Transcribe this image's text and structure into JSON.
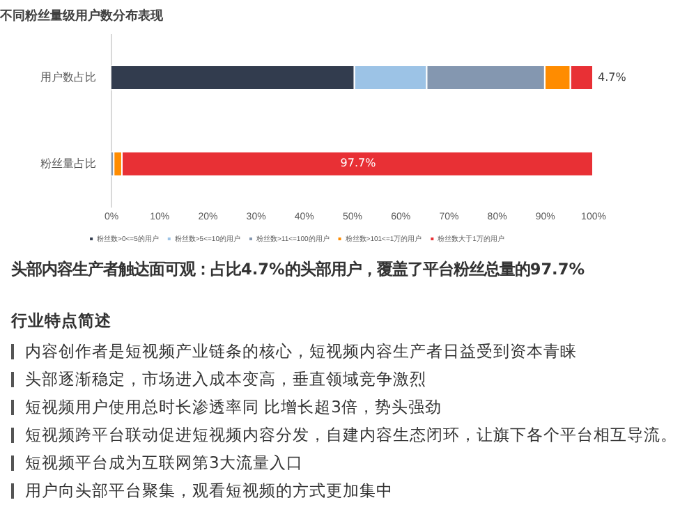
{
  "chart_data": {
    "type": "bar",
    "orientation": "horizontal",
    "stacked": true,
    "title": "不同粉丝量级用户数分布表现",
    "categories": [
      "用户数占比",
      "粉丝量占比"
    ],
    "series": [
      {
        "name": "粉丝数>0<=5的用户",
        "color": "#323c4e",
        "values": [
          50.5,
          null
        ]
      },
      {
        "name": "粉丝数>5<=10的用户",
        "color": "#9cc3e6",
        "values": [
          15.0,
          null
        ]
      },
      {
        "name": "粉丝数>11<=100的用户",
        "color": "#8497b0",
        "values": [
          24.5,
          0.6
        ]
      },
      {
        "name": "粉丝数>101<=1万的用户",
        "color": "#ff8c00",
        "values": [
          5.3,
          1.7
        ]
      },
      {
        "name": "粉丝数大于1万的用户",
        "color": "#e83035",
        "values": [
          4.7,
          97.7
        ],
        "value_labels": [
          "4.7%",
          "97.7%"
        ]
      }
    ],
    "xlim": [
      0,
      100
    ],
    "xticks": [
      {
        "value": 0,
        "label": "0%"
      },
      {
        "value": 10,
        "label": "10%"
      },
      {
        "value": 20,
        "label": "20%"
      },
      {
        "value": 30,
        "label": "30%"
      },
      {
        "value": 40,
        "label": "40%"
      },
      {
        "value": 50,
        "label": "50%"
      },
      {
        "value": 60,
        "label": "60%"
      },
      {
        "value": 70,
        "label": "70%"
      },
      {
        "value": 80,
        "label": "80%"
      },
      {
        "value": 90,
        "label": "90%"
      },
      {
        "value": 100,
        "label": "100%"
      }
    ],
    "grid": false,
    "legend": "bottom",
    "annotations": [
      "头部内容生产者触达面可观：占比4.7%的头部用户，覆盖了平台粉丝总量的97.7%",
      "行业特点简述",
      "内容创作者是短视频产业链条的核心，短视频内容生产者日益受到资本青睐",
      "头部逐渐稳定，市场进入成本变高，垂直领域竞争激烈",
      "短视频用户使用总时长渗透率同 比增长超3倍，势头强劲",
      "短视频跨平台联动促进短视频内容分发，自建内容生态闭环，让旗下各个平台相互导流。",
      "短视频平台成为互联网第3大流量入口",
      "用户向头部平台聚集，观看短视频的方式更加集中"
    ]
  }
}
